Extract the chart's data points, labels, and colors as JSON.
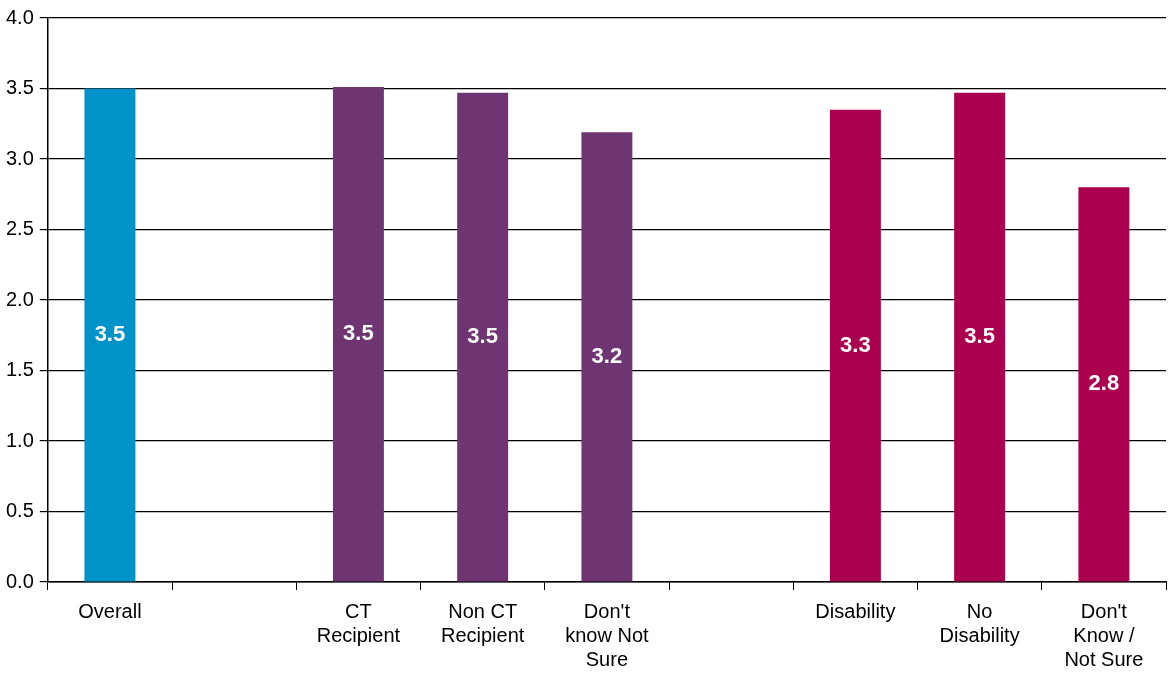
{
  "chart_data": {
    "type": "bar",
    "categories": [
      "Overall",
      null,
      "CT\nRecipient",
      "Non CT\nRecipient",
      "Don't\nknow Not\nSure",
      null,
      "Disability",
      "No\nDisability",
      "Don't\nKnow /\nNot Sure"
    ],
    "values": [
      3.5,
      null,
      3.51,
      3.47,
      3.19,
      null,
      3.35,
      3.47,
      2.8
    ],
    "value_labels": [
      "3.5",
      null,
      "3.5",
      "3.5",
      "3.2",
      null,
      "3.3",
      "3.5",
      "2.8"
    ],
    "colors": [
      "#0093c9",
      "#000000",
      "#6f3572",
      "#6f3572",
      "#6f3572",
      "#000000",
      "#ab004f",
      "#ab004f",
      "#ab004f"
    ],
    "ylim": [
      0,
      4
    ],
    "yticks": [
      {
        "value": 0,
        "label": "0.0"
      },
      0.5,
      {
        "value": 1,
        "label": "1.0"
      },
      1.5,
      {
        "value": 2,
        "label": "2.0"
      },
      2.5,
      {
        "value": 3,
        "label": "3.0"
      },
      3.5,
      {
        "value": 4,
        "label": "4.0"
      }
    ],
    "grid": "y",
    "legend": false
  }
}
